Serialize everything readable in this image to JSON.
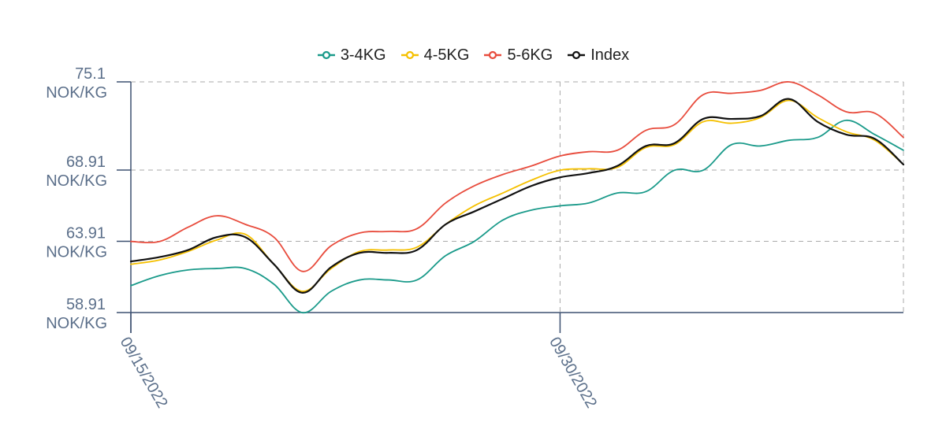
{
  "chart_data": {
    "type": "line",
    "title": "",
    "xlabel": "",
    "ylabel": "",
    "grid": true,
    "legend_position": "top-center",
    "y_unit": "NOK/KG",
    "y_ticks": [
      58.91,
      63.91,
      68.91,
      75.1
    ],
    "y_tick_labels": [
      "58.91",
      "63.91",
      "68.91",
      "75.1"
    ],
    "ylim": [
      58.91,
      75.1
    ],
    "x_ticks": [
      "09/15/2022",
      "09/30/2022"
    ],
    "x_tick_dates": [
      "2022-09-15",
      "2022-09-30"
    ],
    "x": [
      "2022-09-15",
      "2022-09-16",
      "2022-09-17",
      "2022-09-18",
      "2022-09-19",
      "2022-09-20",
      "2022-09-21",
      "2022-09-22",
      "2022-09-23",
      "2022-09-24",
      "2022-09-25",
      "2022-09-26",
      "2022-09-27",
      "2022-09-28",
      "2022-09-29",
      "2022-09-30",
      "2022-10-01",
      "2022-10-02",
      "2022-10-03",
      "2022-10-04",
      "2022-10-05",
      "2022-10-06",
      "2022-10-07",
      "2022-10-08",
      "2022-10-09",
      "2022-10-10",
      "2022-10-11",
      "2022-10-12"
    ],
    "series": [
      {
        "name": "3-4KG",
        "color": "#1a9a8a",
        "values": [
          60.8,
          61.5,
          61.9,
          62.0,
          62.0,
          60.9,
          58.9,
          60.4,
          61.2,
          61.2,
          61.2,
          62.9,
          63.9,
          65.4,
          66.1,
          66.4,
          66.6,
          67.3,
          67.4,
          68.9,
          68.9,
          70.7,
          70.6,
          71.0,
          71.2,
          72.4,
          71.4,
          70.3
        ]
      },
      {
        "name": "4-5KG",
        "color": "#f5c000",
        "values": [
          62.3,
          62.6,
          63.2,
          64.0,
          64.4,
          62.3,
          60.4,
          62.0,
          63.2,
          63.3,
          63.5,
          65.1,
          66.4,
          67.3,
          68.2,
          68.9,
          69.0,
          69.1,
          70.5,
          70.7,
          72.3,
          72.2,
          72.6,
          73.8,
          72.6,
          71.6,
          71.0,
          69.3
        ]
      },
      {
        "name": "5-6KG",
        "color": "#e84c3d",
        "values": [
          63.9,
          63.9,
          64.9,
          65.7,
          65.1,
          64.2,
          61.8,
          63.6,
          64.5,
          64.6,
          64.8,
          66.6,
          67.8,
          68.6,
          69.2,
          69.9,
          70.2,
          70.3,
          71.7,
          72.1,
          74.2,
          74.3,
          74.5,
          75.1,
          74.2,
          73.0,
          72.9,
          71.2
        ]
      },
      {
        "name": "Index",
        "color": "#111111",
        "values": [
          62.5,
          62.8,
          63.3,
          64.2,
          64.2,
          62.3,
          60.3,
          62.1,
          63.1,
          63.1,
          63.3,
          65.1,
          66.0,
          66.9,
          67.8,
          68.4,
          68.7,
          69.2,
          70.6,
          70.8,
          72.5,
          72.5,
          72.7,
          73.9,
          72.3,
          71.4,
          71.1,
          69.3
        ]
      }
    ]
  }
}
